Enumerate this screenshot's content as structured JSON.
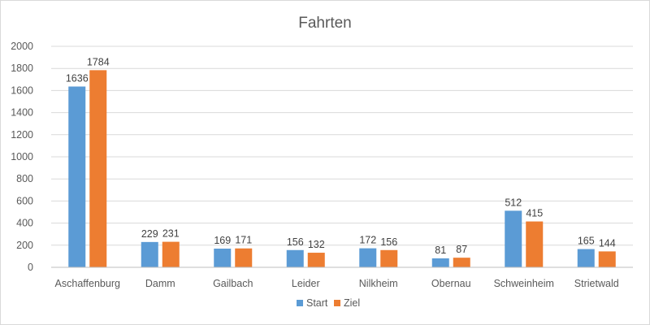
{
  "chart_data": {
    "type": "bar",
    "title": "Fahrten",
    "xlabel": "",
    "ylabel": "",
    "categories": [
      "Aschaffenburg",
      "Damm",
      "Gailbach",
      "Leider",
      "Nilkheim",
      "Obernau",
      "Schweinheim",
      "Strietwald"
    ],
    "series": [
      {
        "name": "Start",
        "color": "#5b9bd5",
        "values": [
          1636,
          229,
          169,
          156,
          172,
          81,
          512,
          165
        ]
      },
      {
        "name": "Ziel",
        "color": "#ed7d31",
        "values": [
          1784,
          231,
          171,
          132,
          156,
          87,
          415,
          144
        ]
      }
    ],
    "ylim": [
      0,
      2000
    ],
    "yticks": [
      0,
      200,
      400,
      600,
      800,
      1000,
      1200,
      1400,
      1600,
      1800,
      2000
    ],
    "grid": true,
    "legend_position": "bottom",
    "data_labels": true
  }
}
